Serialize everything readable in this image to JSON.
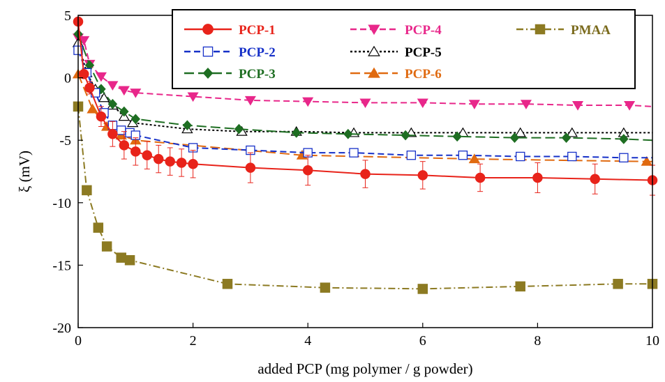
{
  "chart_data": {
    "type": "line",
    "title": "",
    "xlabel": "added PCP  (mg polymer / g powder)",
    "ylabel": "ξ (mV)",
    "xlim": [
      0,
      10
    ],
    "ylim": [
      -20,
      5
    ],
    "xticks": [
      "0",
      "2",
      "4",
      "6",
      "8",
      "10"
    ],
    "yticks": [
      "5",
      "0",
      "-5",
      "-10",
      "-15",
      "-20"
    ],
    "xtick_values": [
      0,
      2,
      4,
      6,
      8,
      10
    ],
    "ytick_values": [
      5,
      0,
      -5,
      -10,
      -15,
      -20
    ],
    "legend_position": "top-right",
    "grid": false,
    "series": [
      {
        "name": "PCP-1",
        "color": "#e8231a",
        "marker": "circle",
        "marker_fill": "filled",
        "line": "solid",
        "x": [
          0,
          0.1,
          0.2,
          0.4,
          0.6,
          0.8,
          1.0,
          1.2,
          1.4,
          1.6,
          1.8,
          2.0,
          3.0,
          4.0,
          5.0,
          6.0,
          7.0,
          8.0,
          9.0,
          10.0
        ],
        "y": [
          4.5,
          0.3,
          -0.8,
          -3.1,
          -4.5,
          -5.4,
          -5.9,
          -6.2,
          -6.5,
          -6.7,
          -6.8,
          -6.9,
          -7.2,
          -7.4,
          -7.7,
          -7.8,
          -8.0,
          -8.0,
          -8.1,
          -8.2
        ],
        "err": [
          0,
          0.3,
          0.5,
          0.8,
          1.0,
          1.1,
          1.1,
          1.1,
          1.1,
          1.1,
          1.1,
          1.1,
          1.2,
          1.2,
          1.1,
          1.1,
          1.1,
          1.2,
          1.2,
          1.2
        ]
      },
      {
        "name": "PCP-2",
        "color": "#1630c8",
        "marker": "square",
        "marker_fill": "open",
        "line": "dashed",
        "x": [
          0,
          0.15,
          0.3,
          0.45,
          0.6,
          0.75,
          0.9,
          1.0,
          2.0,
          3.0,
          4.0,
          4.8,
          5.8,
          6.7,
          7.7,
          8.6,
          9.5,
          10.0
        ],
        "y": [
          2.2,
          0.4,
          -1.2,
          -2.8,
          -3.8,
          -4.2,
          -4.4,
          -4.6,
          -5.6,
          -5.8,
          -6.0,
          -6.0,
          -6.2,
          -6.2,
          -6.3,
          -6.3,
          -6.4,
          -6.4
        ]
      },
      {
        "name": "PCP-3",
        "color": "#1e6e22",
        "marker": "diamond",
        "marker_fill": "filled",
        "line": "longdash",
        "x": [
          0,
          0.2,
          0.4,
          0.6,
          0.8,
          1.0,
          1.9,
          2.8,
          3.8,
          4.7,
          5.7,
          6.6,
          7.6,
          8.5,
          9.5,
          10.0
        ],
        "y": [
          3.5,
          1.0,
          -0.9,
          -2.1,
          -2.7,
          -3.3,
          -3.8,
          -4.1,
          -4.4,
          -4.5,
          -4.6,
          -4.7,
          -4.8,
          -4.8,
          -4.9,
          -5.0
        ]
      },
      {
        "name": "PCP-4",
        "color": "#e8278a",
        "marker": "triangle-down",
        "marker_fill": "filled",
        "line": "dashed",
        "x": [
          0,
          0.1,
          0.2,
          0.4,
          0.6,
          0.8,
          1.0,
          2.0,
          3.0,
          4.0,
          5.0,
          6.0,
          6.9,
          7.8,
          8.7,
          9.6,
          10.0
        ],
        "y": [
          3.2,
          3.0,
          1.1,
          0.1,
          -0.6,
          -1.0,
          -1.2,
          -1.5,
          -1.8,
          -1.9,
          -2.0,
          -2.0,
          -2.1,
          -2.1,
          -2.2,
          -2.2,
          -2.3
        ]
      },
      {
        "name": "PCP-5",
        "color": "#000000",
        "marker": "triangle-up",
        "marker_fill": "open",
        "line": "dotted",
        "x": [
          0,
          0.15,
          0.3,
          0.45,
          0.6,
          0.8,
          0.95,
          1.9,
          2.85,
          3.8,
          4.8,
          5.8,
          6.7,
          7.7,
          8.6,
          9.5,
          10.0
        ],
        "y": [
          2.8,
          0.4,
          -0.9,
          -1.6,
          -2.2,
          -3.1,
          -3.6,
          -4.1,
          -4.3,
          -4.3,
          -4.4,
          -4.4,
          -4.4,
          -4.4,
          -4.4,
          -4.4,
          -4.4
        ]
      },
      {
        "name": "PCP-6",
        "color": "#e06a10",
        "marker": "triangle-up",
        "marker_fill": "filled",
        "line": "longdash",
        "x": [
          0,
          0.25,
          0.5,
          0.75,
          1.0,
          3.9,
          6.9,
          9.9,
          10.0
        ],
        "y": [
          0.3,
          -2.5,
          -3.9,
          -4.6,
          -5.0,
          -6.2,
          -6.5,
          -6.7,
          -6.7
        ]
      },
      {
        "name": "PMAA",
        "color": "#8c7a22",
        "marker": "square",
        "marker_fill": "filled",
        "line": "dashdot",
        "x": [
          0,
          0.15,
          0.35,
          0.5,
          0.75,
          0.9,
          2.6,
          4.3,
          6.0,
          7.7,
          9.4,
          10.0
        ],
        "y": [
          -2.3,
          -9.0,
          -12.0,
          -13.5,
          -14.4,
          -14.6,
          -16.5,
          -16.8,
          -16.9,
          -16.7,
          -16.5,
          -16.5
        ]
      }
    ]
  }
}
